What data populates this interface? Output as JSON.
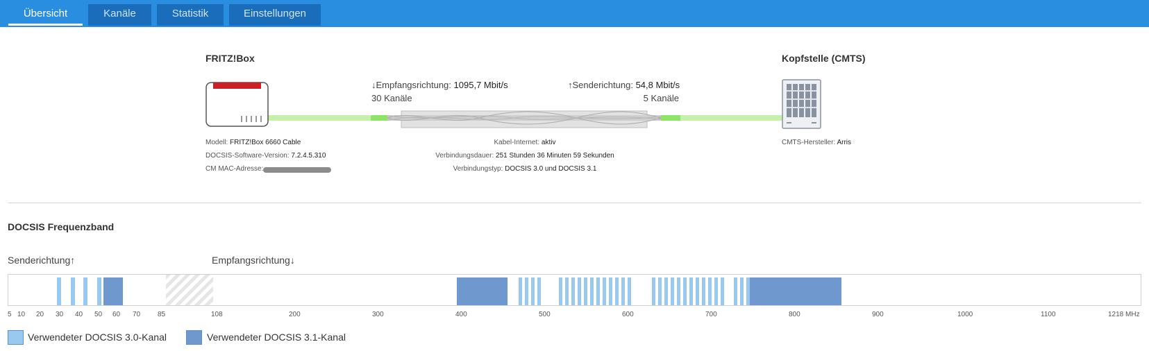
{
  "tabs": [
    {
      "label": "Übersicht",
      "active": true
    },
    {
      "label": "Kanäle",
      "active": false
    },
    {
      "label": "Statistik",
      "active": false
    },
    {
      "label": "Einstellungen",
      "active": false
    }
  ],
  "overview": {
    "fritzbox_title": "FRITZ!Box",
    "cmts_title": "Kopfstelle (CMTS)",
    "downstream": {
      "label": "↓Empfangsrichtung:",
      "rate": "1095,7 Mbit/s",
      "channels": "30 Kanäle"
    },
    "upstream": {
      "label": "↑Senderichtung:",
      "rate": "54,8 Mbit/s",
      "channels": "5 Kanäle"
    },
    "device_info": [
      {
        "label": "Modell:",
        "value": "FRITZ!Box 6660 Cable"
      },
      {
        "label": "DOCSIS-Software-Version:",
        "value": "7.2.4.5.310"
      },
      {
        "label": "CM MAC-Adresse:",
        "value": ""
      }
    ],
    "connection_info": [
      {
        "label": "Kabel-Internet:",
        "value": "aktiv"
      },
      {
        "label": "Verbindungsdauer:",
        "value": "251 Stunden 36 Minuten 59 Sekunden"
      },
      {
        "label": "Verbindungstyp:",
        "value": "DOCSIS 3.0 und DOCSIS 3.1"
      }
    ],
    "cmts_info": {
      "label": "CMTS-Hersteller:",
      "value": "Arris"
    }
  },
  "band": {
    "title": "DOCSIS Frequenzband",
    "upstream_label": "Senderichtung↑",
    "downstream_label": "Empfangsrichtung↓",
    "upstream_ticks": [
      "5",
      "10",
      "20",
      "30",
      "40",
      "50",
      "60",
      "70",
      "85"
    ],
    "downstream_ticks": [
      "108",
      "200",
      "300",
      "400",
      "500",
      "600",
      "700",
      "800",
      "900",
      "1000",
      "1100",
      "1218 MHz"
    ],
    "legend": [
      {
        "label": "Verwendeter DOCSIS 3.0-Kanal",
        "color": "#99c9ee"
      },
      {
        "label": "Verwendeter DOCSIS 3.1-Kanal",
        "color": "#6f98cf"
      }
    ]
  },
  "colors": {
    "tabbar": "#2a8ee0",
    "docsis30": "#99c9ee",
    "docsis31": "#6f98cf",
    "fritz_red": "#cc1f26",
    "cable_green": "#b9ee9b"
  }
}
